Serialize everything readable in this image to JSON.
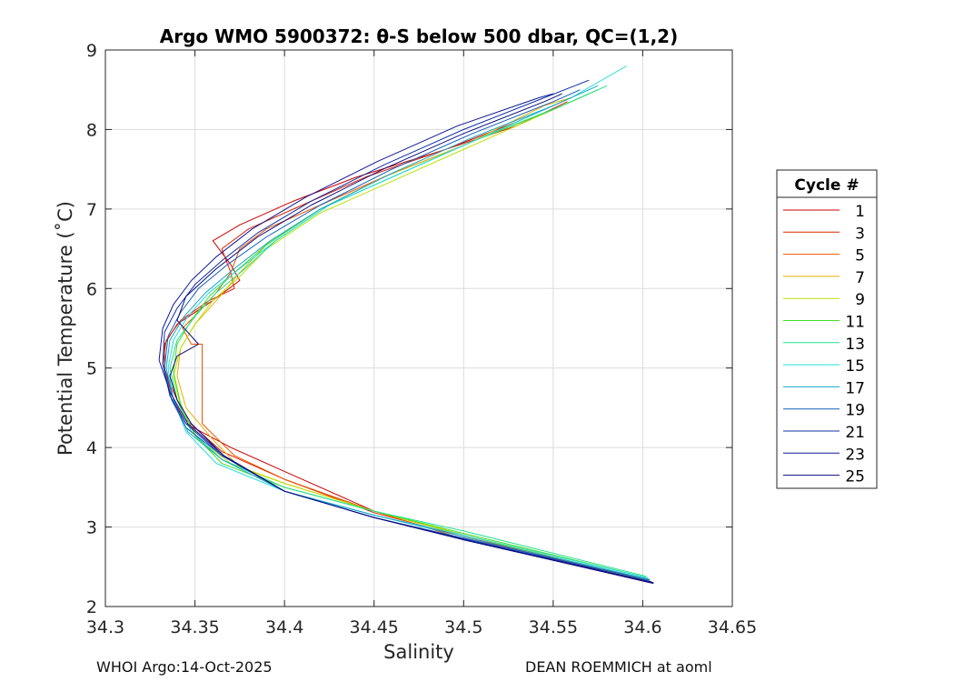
{
  "chart_data": {
    "type": "line",
    "title": "Argo WMO 5900372: θ-S below 500 dbar,  QC=(1,2)",
    "xlabel": "Salinity",
    "ylabel": "Potential Temperature (˚C)",
    "xlim": [
      34.3,
      34.65
    ],
    "ylim": [
      2,
      9
    ],
    "xticks": [
      "34.3",
      "34.35",
      "34.4",
      "34.45",
      "34.5",
      "34.55",
      "34.6",
      "34.65"
    ],
    "yticks": [
      "2",
      "3",
      "4",
      "5",
      "6",
      "7",
      "8",
      "9"
    ],
    "grid": true,
    "legend": {
      "title": "Cycle #",
      "position": "right",
      "entries": [
        "1",
        "3",
        "5",
        "7",
        "9",
        "11",
        "13",
        "15",
        "17",
        "19",
        "21",
        "23",
        "25"
      ],
      "colors": [
        "#cc0000",
        "#dd2200",
        "#ee5500",
        "#e8b000",
        "#b8e000",
        "#44dd22",
        "#22e08a",
        "#22dddd",
        "#14a8c8",
        "#1060c0",
        "#1030a8",
        "#101898",
        "#0a0a80"
      ]
    },
    "series": [
      {
        "name": "1",
        "color": "#cc0000",
        "x": [
          34.605,
          34.5,
          34.45,
          34.4,
          34.37,
          34.345,
          34.338,
          34.333,
          34.333,
          34.34,
          34.36,
          34.375,
          34.37,
          34.36,
          34.375,
          34.405,
          34.44,
          34.49,
          34.53,
          34.56
        ],
        "y": [
          2.3,
          2.9,
          3.2,
          3.7,
          4.0,
          4.3,
          4.6,
          5.0,
          5.3,
          5.55,
          5.85,
          6.1,
          6.3,
          6.6,
          6.8,
          7.1,
          7.4,
          7.75,
          8.1,
          8.4
        ]
      },
      {
        "name": "3",
        "color": "#dd2200",
        "x": [
          34.604,
          34.5,
          34.45,
          34.4,
          34.365,
          34.345,
          34.338,
          34.332,
          34.334,
          34.342,
          34.358,
          34.372,
          34.37,
          34.365,
          34.38,
          34.41,
          34.445,
          34.49,
          34.53,
          34.558
        ],
        "y": [
          2.3,
          2.88,
          3.18,
          3.6,
          3.95,
          4.35,
          4.7,
          5.05,
          5.35,
          5.6,
          5.85,
          6.0,
          6.2,
          6.5,
          6.75,
          7.05,
          7.4,
          7.75,
          8.05,
          8.35
        ]
      },
      {
        "name": "5",
        "color": "#ee5500",
        "x": [
          34.604,
          34.5,
          34.45,
          34.4,
          34.372,
          34.354,
          34.354,
          34.354,
          34.348,
          34.343,
          34.352,
          34.362,
          34.37,
          34.375,
          34.39,
          34.42,
          34.455,
          34.5,
          34.54
        ],
        "y": [
          2.3,
          2.85,
          3.2,
          3.6,
          3.9,
          4.3,
          4.8,
          5.3,
          5.3,
          5.5,
          5.7,
          5.95,
          6.2,
          6.5,
          6.75,
          7.05,
          7.4,
          7.8,
          8.2
        ]
      },
      {
        "name": "7",
        "color": "#e8b000",
        "x": [
          34.603,
          34.5,
          34.45,
          34.4,
          34.375,
          34.36,
          34.345,
          34.34,
          34.342,
          34.35,
          34.362,
          34.375,
          34.39,
          34.42,
          34.455,
          34.5,
          34.545,
          34.56
        ],
        "y": [
          2.32,
          2.9,
          3.2,
          3.55,
          3.75,
          4.1,
          4.5,
          4.9,
          5.25,
          5.55,
          5.85,
          6.2,
          6.55,
          7.0,
          7.4,
          7.8,
          8.3,
          8.4
        ]
      },
      {
        "name": "9",
        "color": "#b8e000",
        "x": [
          34.603,
          34.5,
          34.45,
          34.4,
          34.37,
          34.352,
          34.342,
          34.338,
          34.342,
          34.35,
          34.36,
          34.375,
          34.39,
          34.42,
          34.46,
          34.505,
          34.55,
          34.57
        ],
        "y": [
          2.33,
          2.9,
          3.2,
          3.55,
          3.8,
          4.1,
          4.5,
          4.9,
          5.25,
          5.55,
          5.85,
          6.15,
          6.5,
          6.95,
          7.35,
          7.8,
          8.25,
          8.45
        ]
      },
      {
        "name": "11",
        "color": "#44dd22",
        "x": [
          34.603,
          34.5,
          34.45,
          34.4,
          34.365,
          34.35,
          34.342,
          34.338,
          34.34,
          34.348,
          34.358,
          34.372,
          34.39,
          34.42,
          34.46,
          34.505,
          34.55,
          34.575
        ],
        "y": [
          2.36,
          2.92,
          3.2,
          3.5,
          3.8,
          4.15,
          4.55,
          4.95,
          5.3,
          5.6,
          5.9,
          6.2,
          6.55,
          7.0,
          7.4,
          7.85,
          8.25,
          8.5
        ]
      },
      {
        "name": "13",
        "color": "#22e08a",
        "x": [
          34.602,
          34.5,
          34.45,
          34.4,
          34.365,
          34.348,
          34.34,
          34.336,
          34.34,
          34.35,
          34.362,
          34.378,
          34.395,
          34.425,
          34.465,
          34.51,
          34.555,
          34.58
        ],
        "y": [
          2.38,
          2.95,
          3.2,
          3.5,
          3.85,
          4.2,
          4.6,
          5.0,
          5.35,
          5.65,
          5.95,
          6.25,
          6.6,
          7.05,
          7.45,
          7.9,
          8.3,
          8.55
        ]
      },
      {
        "name": "15",
        "color": "#22dddd",
        "x": [
          34.603,
          34.5,
          34.45,
          34.4,
          34.362,
          34.345,
          34.338,
          34.335,
          34.338,
          34.346,
          34.358,
          34.375,
          34.395,
          34.425,
          34.47,
          34.515,
          34.56,
          34.591
        ],
        "y": [
          2.36,
          2.9,
          3.15,
          3.45,
          3.8,
          4.2,
          4.6,
          5.0,
          5.35,
          5.65,
          5.95,
          6.25,
          6.6,
          7.05,
          7.5,
          7.95,
          8.4,
          8.8
        ]
      },
      {
        "name": "17",
        "color": "#14a8c8",
        "x": [
          34.604,
          34.5,
          34.45,
          34.4,
          34.365,
          34.346,
          34.338,
          34.334,
          34.336,
          34.344,
          34.356,
          34.372,
          34.392,
          34.42,
          34.46,
          34.505,
          34.55,
          34.575
        ],
        "y": [
          2.34,
          2.88,
          3.15,
          3.45,
          3.85,
          4.2,
          4.6,
          5.0,
          5.35,
          5.65,
          5.95,
          6.25,
          6.6,
          7.0,
          7.45,
          7.9,
          8.3,
          8.55
        ]
      },
      {
        "name": "19",
        "color": "#1060c0",
        "x": [
          34.604,
          34.5,
          34.45,
          34.4,
          34.365,
          34.345,
          34.337,
          34.333,
          34.335,
          34.342,
          34.352,
          34.368,
          34.39,
          34.42,
          34.46,
          34.505,
          34.55,
          34.565
        ],
        "y": [
          2.33,
          2.86,
          3.12,
          3.45,
          3.9,
          4.25,
          4.6,
          5.0,
          5.4,
          5.7,
          6.0,
          6.3,
          6.65,
          7.05,
          7.5,
          7.95,
          8.35,
          8.5
        ]
      },
      {
        "name": "21",
        "color": "#1030a8",
        "x": [
          34.605,
          34.5,
          34.45,
          34.4,
          34.365,
          34.345,
          34.336,
          34.332,
          34.333,
          34.34,
          34.35,
          34.365,
          34.385,
          34.415,
          34.455,
          34.5,
          34.545,
          34.57
        ],
        "y": [
          2.31,
          2.85,
          3.12,
          3.45,
          3.9,
          4.3,
          4.65,
          5.05,
          5.45,
          5.75,
          6.05,
          6.35,
          6.7,
          7.1,
          7.55,
          8.0,
          8.4,
          8.62
        ]
      },
      {
        "name": "23",
        "color": "#101898",
        "x": [
          34.606,
          34.5,
          34.45,
          34.4,
          34.366,
          34.346,
          34.336,
          34.33,
          34.332,
          34.338,
          34.348,
          34.362,
          34.382,
          34.412,
          34.452,
          34.497,
          34.542,
          34.55
        ],
        "y": [
          2.3,
          2.84,
          3.12,
          3.45,
          3.9,
          4.3,
          4.7,
          5.1,
          5.5,
          5.8,
          6.1,
          6.4,
          6.75,
          7.15,
          7.6,
          8.05,
          8.4,
          8.45
        ]
      },
      {
        "name": "25",
        "color": "#0a0a80",
        "x": [
          34.606,
          34.5,
          34.45,
          34.4,
          34.366,
          34.348,
          34.34,
          34.336,
          34.34,
          34.352,
          34.34,
          34.345,
          34.362,
          34.385,
          34.415,
          34.455,
          34.5,
          34.545,
          34.555
        ],
        "y": [
          2.29,
          2.84,
          3.12,
          3.45,
          3.9,
          4.3,
          4.6,
          4.9,
          5.15,
          5.3,
          5.6,
          5.9,
          6.25,
          6.65,
          7.05,
          7.5,
          7.95,
          8.35,
          8.45
        ]
      }
    ]
  },
  "footer": {
    "left": "WHOI Argo:14-Oct-2025",
    "right": "DEAN ROEMMICH at aoml"
  }
}
